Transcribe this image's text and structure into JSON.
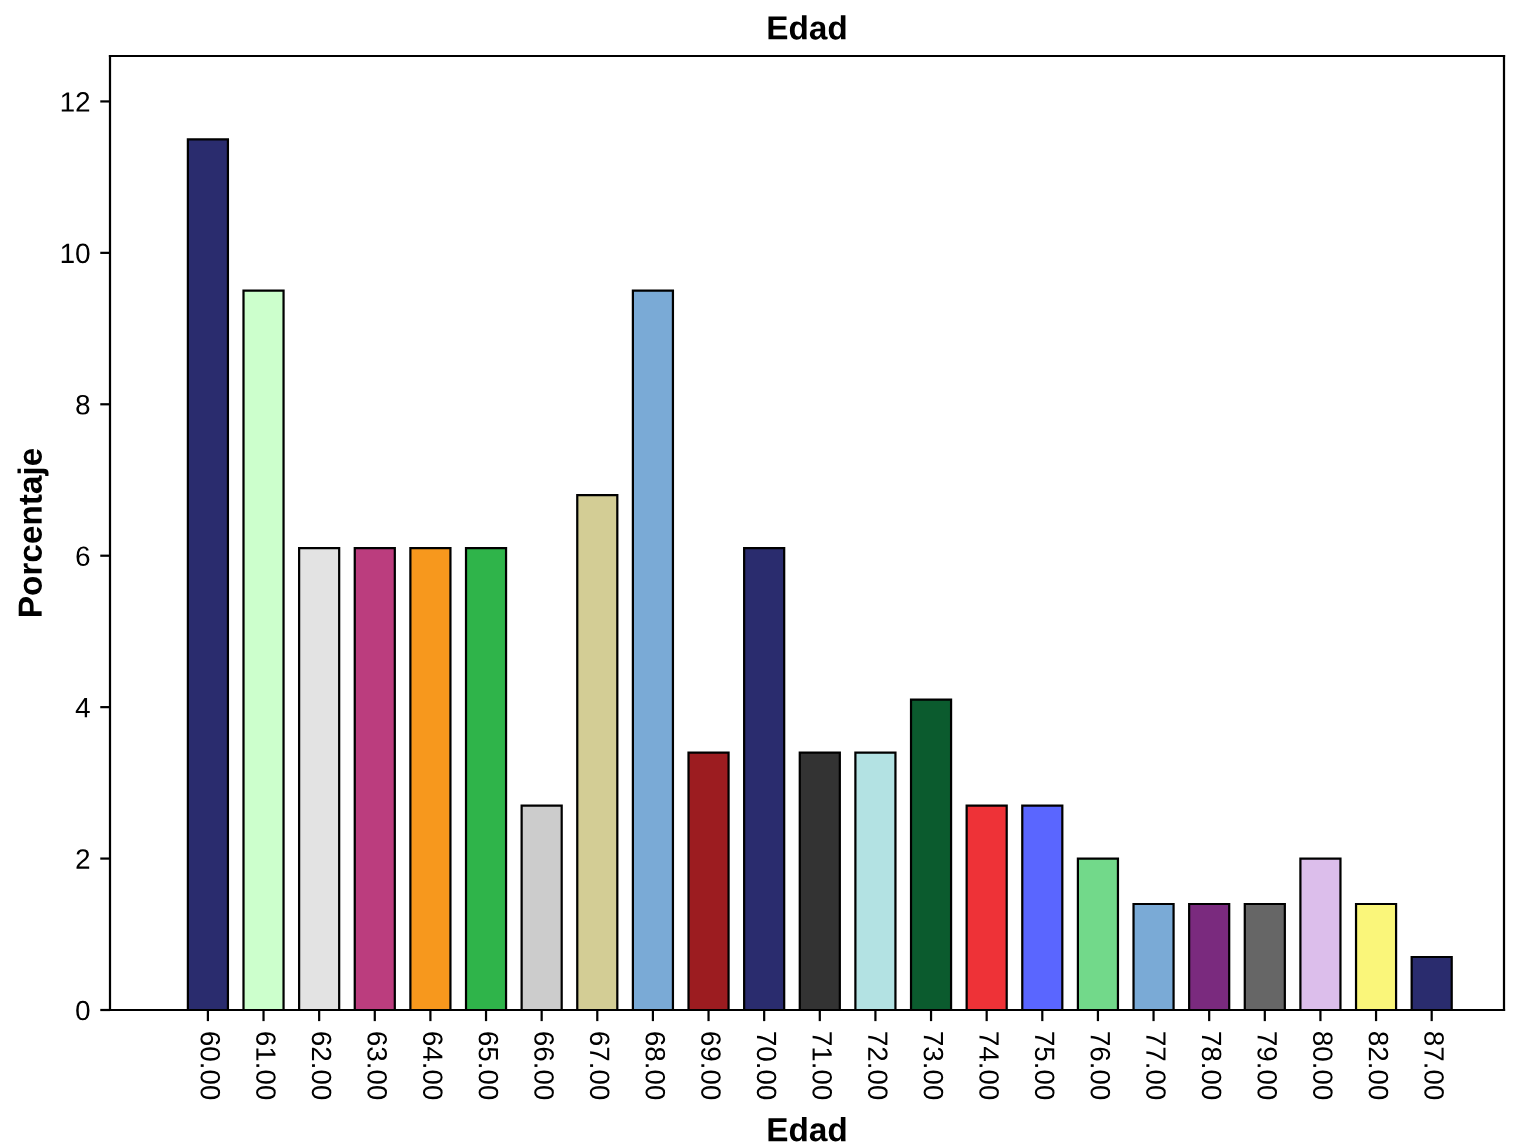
{
  "chart_data": {
    "type": "bar",
    "title": "Edad",
    "xlabel": "Edad",
    "ylabel": "Porcentaje",
    "categories": [
      "60.00",
      "61.00",
      "62.00",
      "63.00",
      "64.00",
      "65.00",
      "66.00",
      "67.00",
      "68.00",
      "69.00",
      "70.00",
      "71.00",
      "72.00",
      "73.00",
      "74.00",
      "75.00",
      "76.00",
      "77.00",
      "78.00",
      "79.00",
      "80.00",
      "82.00",
      "87.00"
    ],
    "values": [
      11.5,
      9.5,
      6.1,
      6.1,
      6.1,
      6.1,
      2.7,
      6.8,
      9.5,
      3.4,
      6.1,
      3.4,
      3.4,
      4.1,
      2.7,
      2.7,
      2.0,
      1.4,
      1.4,
      1.4,
      2.0,
      1.4,
      0.7
    ],
    "colors": [
      "#2a2c6e",
      "#ccffcc",
      "#e3e3e3",
      "#bb3d7e",
      "#f7981d",
      "#2fb44a",
      "#cccccc",
      "#d3cd95",
      "#7aaad6",
      "#9c1c20",
      "#2a2c6e",
      "#333333",
      "#b3e2e3",
      "#0b5b2e",
      "#ee3237",
      "#5a66ff",
      "#72d98a",
      "#7aaad6",
      "#7a2a7e",
      "#666666",
      "#dcbeeb",
      "#faf67a",
      "#2a2c6e"
    ],
    "ylim": [
      0,
      12.6
    ],
    "yticks": [
      0,
      2,
      4,
      6,
      8,
      10,
      12
    ],
    "grid": false
  }
}
